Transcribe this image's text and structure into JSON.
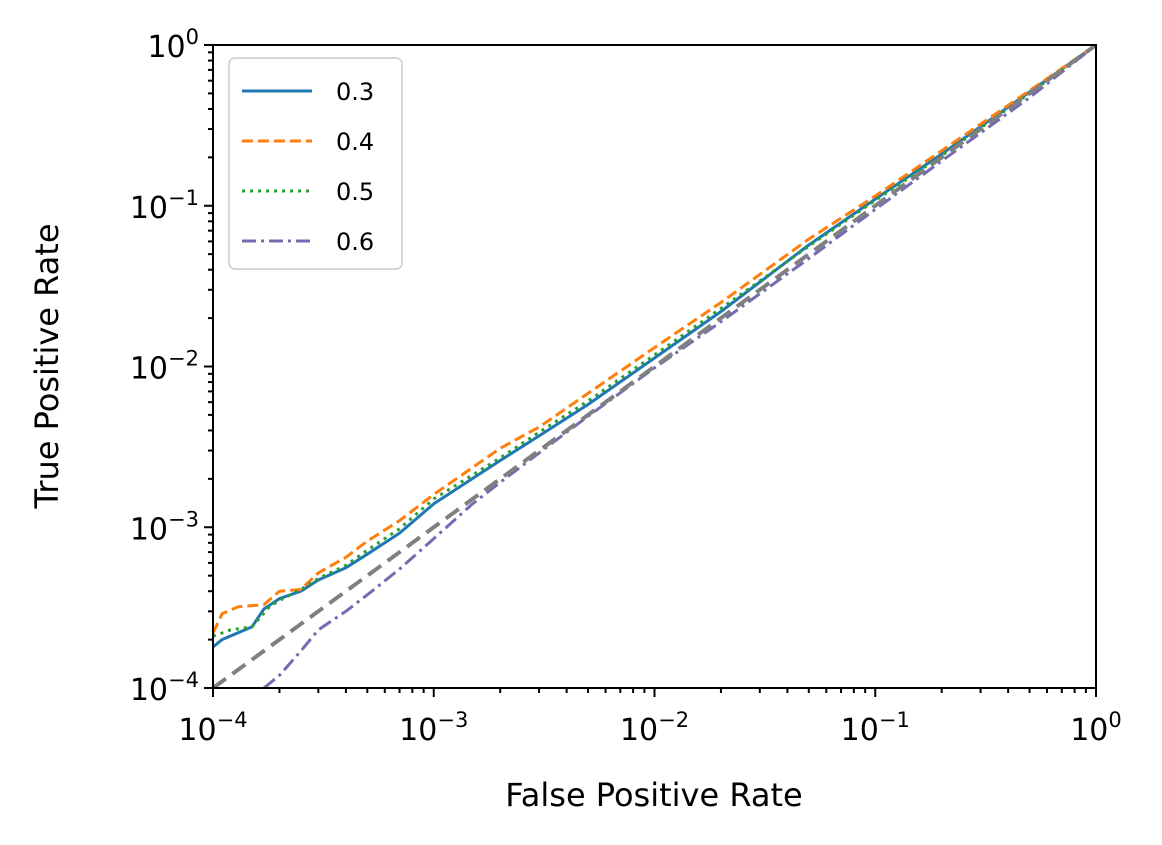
{
  "chart_data": {
    "type": "line",
    "xscale": "log",
    "yscale": "log",
    "xlabel": "False Positive Rate",
    "ylabel": "True Positive Rate",
    "xlim": [
      0.0001,
      1
    ],
    "ylim": [
      0.0001,
      1
    ],
    "ticks": [
      {
        "base": "10",
        "exp": "−4",
        "value": 0.0001
      },
      {
        "base": "10",
        "exp": "−3",
        "value": 0.001
      },
      {
        "base": "10",
        "exp": "−2",
        "value": 0.01
      },
      {
        "base": "10",
        "exp": "−1",
        "value": 0.1
      },
      {
        "base": "10",
        "exp": "0",
        "value": 1
      }
    ],
    "legend_position": "upper-left",
    "series": [
      {
        "name": "0.3",
        "color": "#1f77b4",
        "dash": "solid",
        "x": [
          0.0001,
          0.00011,
          0.00015,
          0.00017,
          0.0002,
          0.00025,
          0.0003,
          0.0004,
          0.0005,
          0.0007,
          0.001,
          0.002,
          0.003,
          0.005,
          0.01,
          0.02,
          0.05,
          0.1,
          0.2,
          0.5,
          1
        ],
        "y": [
          0.00018,
          0.0002,
          0.00024,
          0.00031,
          0.00036,
          0.0004,
          0.00047,
          0.00056,
          0.00068,
          0.00092,
          0.0014,
          0.0026,
          0.0037,
          0.0058,
          0.0113,
          0.022,
          0.057,
          0.11,
          0.21,
          0.51,
          1
        ]
      },
      {
        "name": "0.4",
        "color": "#ff7f0e",
        "dash": "dashed",
        "x": [
          0.0001,
          0.00011,
          0.00013,
          0.00017,
          0.0002,
          0.00025,
          0.0003,
          0.0004,
          0.0005,
          0.0007,
          0.001,
          0.002,
          0.003,
          0.005,
          0.01,
          0.02,
          0.05,
          0.1,
          0.2,
          0.5,
          1
        ],
        "y": [
          0.00022,
          0.00029,
          0.00032,
          0.00033,
          0.0004,
          0.00041,
          0.00052,
          0.00065,
          0.00082,
          0.0011,
          0.0016,
          0.0031,
          0.0042,
          0.0068,
          0.0131,
          0.025,
          0.062,
          0.115,
          0.22,
          0.52,
          1
        ]
      },
      {
        "name": "0.5",
        "color": "#2ca02c",
        "dash": "dotted",
        "x": [
          0.0001,
          0.00012,
          0.00015,
          0.00018,
          0.0002,
          0.00025,
          0.0003,
          0.0004,
          0.0005,
          0.0007,
          0.001,
          0.002,
          0.003,
          0.005,
          0.01,
          0.02,
          0.05,
          0.1,
          0.2,
          0.5,
          1
        ],
        "y": [
          0.00021,
          0.00023,
          0.00024,
          0.00032,
          0.00035,
          0.00041,
          0.00048,
          0.00058,
          0.00072,
          0.00098,
          0.0015,
          0.0027,
          0.0039,
          0.0061,
          0.0118,
          0.023,
          0.056,
          0.108,
          0.205,
          0.5,
          1
        ]
      },
      {
        "name": "0.6",
        "color": "#756bb1",
        "dash": "dashdot",
        "x": [
          0.00017,
          0.0002,
          0.00025,
          0.0003,
          0.0004,
          0.0005,
          0.0007,
          0.001,
          0.0015,
          0.002,
          0.003,
          0.005,
          0.01,
          0.02,
          0.05,
          0.1,
          0.2,
          0.5,
          1
        ],
        "y": [
          0.0001,
          0.00012,
          0.00017,
          0.00023,
          0.0003,
          0.00038,
          0.00055,
          0.00085,
          0.0014,
          0.0019,
          0.0029,
          0.0049,
          0.0098,
          0.019,
          0.047,
          0.095,
          0.19,
          0.47,
          1
        ]
      },
      {
        "name": "",
        "color": "#808080",
        "dash": "chance",
        "x": [
          0.0001,
          1
        ],
        "y": [
          0.0001,
          1
        ]
      }
    ]
  }
}
